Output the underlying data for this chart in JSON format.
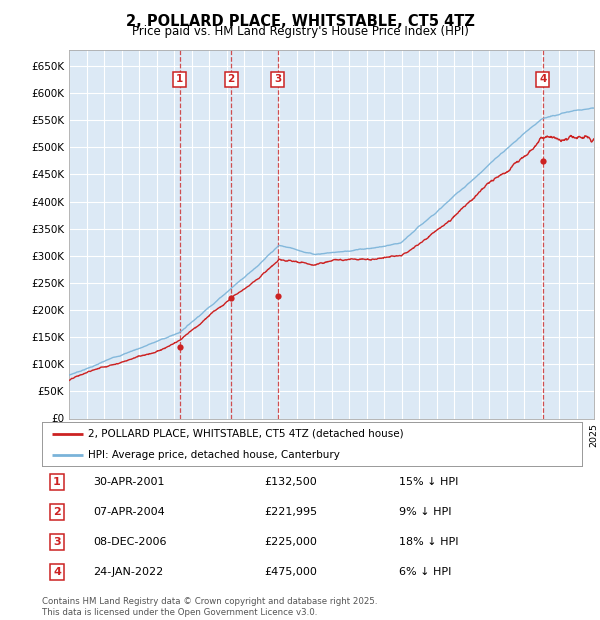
{
  "title": "2, POLLARD PLACE, WHITSTABLE, CT5 4TZ",
  "subtitle": "Price paid vs. HM Land Registry's House Price Index (HPI)",
  "ylim": [
    0,
    680000
  ],
  "yticks": [
    0,
    50000,
    100000,
    150000,
    200000,
    250000,
    300000,
    350000,
    400000,
    450000,
    500000,
    550000,
    600000,
    650000
  ],
  "ytick_labels": [
    "£0",
    "£50K",
    "£100K",
    "£150K",
    "£200K",
    "£250K",
    "£300K",
    "£350K",
    "£400K",
    "£450K",
    "£500K",
    "£550K",
    "£600K",
    "£650K"
  ],
  "plot_bg_color": "#dce9f5",
  "grid_color": "#ffffff",
  "hpi_line_color": "#7ab3d9",
  "price_line_color": "#cc2222",
  "vline_color": "#cc3333",
  "legend_label_price": "2, POLLARD PLACE, WHITSTABLE, CT5 4TZ (detached house)",
  "legend_label_hpi": "HPI: Average price, detached house, Canterbury",
  "sales": [
    {
      "label": "1",
      "date_num": 2001.33,
      "price": 132500
    },
    {
      "label": "2",
      "date_num": 2004.27,
      "price": 221995
    },
    {
      "label": "3",
      "date_num": 2006.93,
      "price": 225000
    },
    {
      "label": "4",
      "date_num": 2022.07,
      "price": 475000
    }
  ],
  "table_rows": [
    {
      "num": "1",
      "date": "30-APR-2001",
      "price": "£132,500",
      "info": "15% ↓ HPI"
    },
    {
      "num": "2",
      "date": "07-APR-2004",
      "price": "£221,995",
      "info": "9% ↓ HPI"
    },
    {
      "num": "3",
      "date": "08-DEC-2006",
      "price": "£225,000",
      "info": "18% ↓ HPI"
    },
    {
      "num": "4",
      "date": "24-JAN-2022",
      "price": "£475,000",
      "info": "6% ↓ HPI"
    }
  ],
  "footer": "Contains HM Land Registry data © Crown copyright and database right 2025.\nThis data is licensed under the Open Government Licence v3.0.",
  "xmin": 1995,
  "xmax": 2025
}
